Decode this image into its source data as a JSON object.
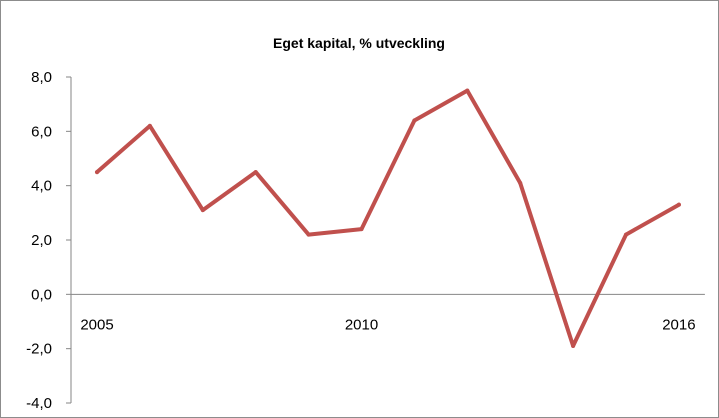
{
  "chart_data": {
    "type": "line",
    "title": "Eget kapital, % utveckling",
    "xlabel": "",
    "ylabel": "",
    "x": [
      2005,
      2006,
      2007,
      2008,
      2009,
      2010,
      2011,
      2012,
      2013,
      2014,
      2015,
      2016
    ],
    "x_tick_labels": [
      "2005",
      "2010",
      "2016"
    ],
    "x_tick_values": [
      2005,
      2010,
      2016
    ],
    "series": [
      {
        "values": [
          4.5,
          6.2,
          3.1,
          4.5,
          2.2,
          2.4,
          6.4,
          7.5,
          4.1,
          -1.9,
          2.2,
          3.3
        ]
      }
    ],
    "ylim": [
      -4,
      8
    ],
    "y_ticks": [
      -4,
      -2,
      0,
      2,
      4,
      6,
      8
    ],
    "y_tick_labels": [
      "-4,0",
      "-2,0",
      "0,0",
      "2,0",
      "4,0",
      "6,0",
      "8,0"
    ],
    "grid": false,
    "legend": "none",
    "colors": {
      "line": "#c0504d",
      "axis": "#868686",
      "border": "#8c8c8c"
    }
  }
}
